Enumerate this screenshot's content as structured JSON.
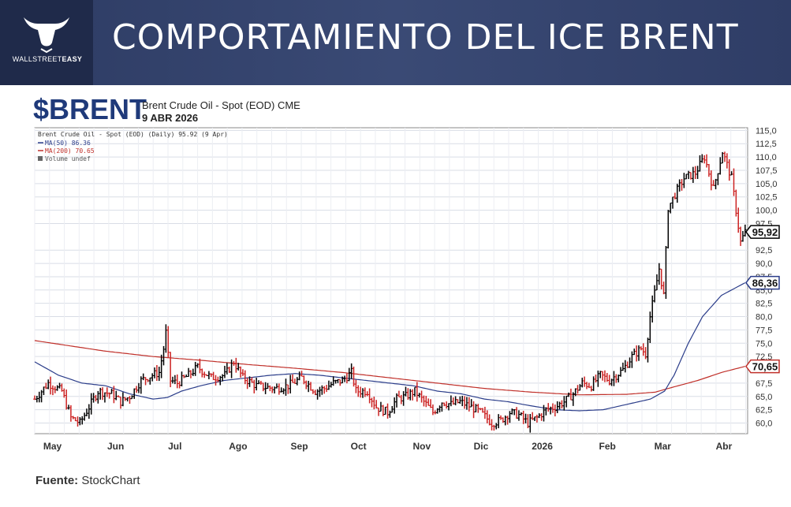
{
  "header": {
    "title": "COMPORTAMIENTO DEL ICE BRENT",
    "logo_text_light": "WALLSTREET",
    "logo_text_bold": "EASY"
  },
  "chart_header": {
    "symbol": "$BRENT",
    "description": "Brent Crude Oil - Spot (EOD) CME",
    "date": "9 ABR 2026"
  },
  "legend": {
    "price": "Brent Crude Oil - Spot (EOD) (Daily) 95.92 (9 Apr)",
    "ma50": "MA(50) 86.36",
    "ma200": "MA(200) 70.65",
    "volume": "Volume undef"
  },
  "footer": {
    "source_label": "Fuente:",
    "source_value": "StockChart"
  },
  "colors": {
    "header_bg": "#2d3b63",
    "up_bar": "#000000",
    "down_bar": "#cc2222",
    "ma50": "#2b3d8a",
    "ma200": "#c0302a",
    "grid": "#d9dde6"
  },
  "chart_data": {
    "type": "ohlc",
    "title": "Brent Crude Oil - Spot (EOD) (Daily)",
    "ylim": [
      58,
      115.5
    ],
    "y_ticks": [
      "115,0",
      "112,5",
      "110,0",
      "107,5",
      "105,0",
      "102,5",
      "100,0",
      "97,5",
      "92,5",
      "90,0",
      "87,5",
      "85,0",
      "82,5",
      "80,0",
      "77,5",
      "75,0",
      "72,5",
      "67,5",
      "65,0",
      "62,5",
      "60,0"
    ],
    "y_tick_values": [
      115,
      112.5,
      110,
      107.5,
      105,
      102.5,
      100,
      97.5,
      92.5,
      90,
      87.5,
      85,
      82.5,
      80,
      77.5,
      75,
      72.5,
      67.5,
      65,
      62.5,
      60
    ],
    "x_labels": [
      "May",
      "Jun",
      "Jul",
      "Ago",
      "Sep",
      "Oct",
      "Nov",
      "Dic",
      "2026",
      "Feb",
      "Mar",
      "Abr"
    ],
    "x_label_positions_days": [
      9,
      41,
      71,
      103,
      134,
      164,
      196,
      226,
      257,
      290,
      318,
      349
    ],
    "total_days": 361,
    "last_value_labels": [
      {
        "label": "95,92",
        "value": 95.92,
        "series": "price"
      },
      {
        "label": "86,36",
        "value": 86.36,
        "series": "ma50"
      },
      {
        "label": "70,65",
        "value": 70.65,
        "series": "ma200"
      }
    ],
    "price_path": [
      [
        0,
        64.5
      ],
      [
        6,
        67.5
      ],
      [
        12,
        66
      ],
      [
        16,
        61
      ],
      [
        20,
        60
      ],
      [
        24,
        63
      ],
      [
        28,
        66
      ],
      [
        34,
        65.5
      ],
      [
        38,
        64
      ],
      [
        42,
        65
      ],
      [
        47,
        68
      ],
      [
        52,
        69
      ],
      [
        55,
        69.5
      ],
      [
        57,
        74
      ],
      [
        58,
        77
      ],
      [
        60,
        68
      ],
      [
        63,
        67.5
      ],
      [
        68,
        69
      ],
      [
        72,
        70.5
      ],
      [
        78,
        68.5
      ],
      [
        84,
        69
      ],
      [
        88,
        71.5
      ],
      [
        92,
        68.5
      ],
      [
        98,
        67
      ],
      [
        106,
        66.5
      ],
      [
        112,
        67
      ],
      [
        118,
        68.5
      ],
      [
        124,
        66
      ],
      [
        128,
        66.5
      ],
      [
        132,
        67.5
      ],
      [
        136,
        68
      ],
      [
        140,
        69.5
      ],
      [
        142,
        66
      ],
      [
        147,
        66
      ],
      [
        151,
        63
      ],
      [
        156,
        62
      ],
      [
        160,
        64.5
      ],
      [
        164,
        65
      ],
      [
        168,
        66
      ],
      [
        172,
        64
      ],
      [
        176,
        62
      ],
      [
        180,
        64
      ],
      [
        184,
        63.5
      ],
      [
        188,
        64
      ],
      [
        193,
        63
      ],
      [
        197,
        62
      ],
      [
        202,
        60
      ],
      [
        206,
        60.5
      ],
      [
        210,
        62
      ],
      [
        214,
        61.5
      ],
      [
        218,
        60
      ],
      [
        222,
        61
      ],
      [
        226,
        62.5
      ],
      [
        230,
        63
      ],
      [
        234,
        64
      ],
      [
        238,
        65.5
      ],
      [
        242,
        67.5
      ],
      [
        246,
        67
      ],
      [
        250,
        69
      ],
      [
        254,
        68
      ],
      [
        260,
        70
      ],
      [
        264,
        72.5
      ],
      [
        268,
        74
      ],
      [
        270,
        73
      ],
      [
        272,
        80
      ],
      [
        276,
        89
      ],
      [
        278,
        84
      ],
      [
        280,
        100.5
      ],
      [
        283,
        103
      ],
      [
        287,
        106
      ],
      [
        292,
        107
      ],
      [
        296,
        110
      ],
      [
        300,
        104
      ],
      [
        304,
        111
      ],
      [
        308,
        106
      ],
      [
        312,
        94
      ],
      [
        314,
        95.92
      ]
    ],
    "ma50_path": [
      [
        0,
        71.5
      ],
      [
        10,
        69
      ],
      [
        20,
        67.5
      ],
      [
        30,
        67
      ],
      [
        40,
        65.5
      ],
      [
        50,
        64.5
      ],
      [
        56,
        64.8
      ],
      [
        62,
        66
      ],
      [
        70,
        67
      ],
      [
        80,
        68
      ],
      [
        90,
        68.5
      ],
      [
        100,
        69
      ],
      [
        110,
        69.3
      ],
      [
        120,
        69
      ],
      [
        130,
        68.5
      ],
      [
        140,
        68
      ],
      [
        150,
        67.5
      ],
      [
        160,
        67
      ],
      [
        170,
        66
      ],
      [
        180,
        65.5
      ],
      [
        190,
        64.5
      ],
      [
        200,
        64
      ],
      [
        210,
        63.2
      ],
      [
        220,
        62.5
      ],
      [
        230,
        62.3
      ],
      [
        240,
        62.5
      ],
      [
        250,
        63.5
      ],
      [
        260,
        64.5
      ],
      [
        266,
        66
      ],
      [
        270,
        69
      ],
      [
        276,
        75
      ],
      [
        282,
        80
      ],
      [
        290,
        84
      ],
      [
        300,
        86.36
      ]
    ],
    "ma200_path": [
      [
        0,
        75.5
      ],
      [
        15,
        74.5
      ],
      [
        30,
        73.5
      ],
      [
        50,
        72.5
      ],
      [
        70,
        71.8
      ],
      [
        90,
        71
      ],
      [
        110,
        70.3
      ],
      [
        130,
        69.5
      ],
      [
        150,
        68.5
      ],
      [
        170,
        67.5
      ],
      [
        190,
        66.5
      ],
      [
        210,
        65.8
      ],
      [
        230,
        65.3
      ],
      [
        250,
        65.4
      ],
      [
        262,
        65.8
      ],
      [
        270,
        66.8
      ],
      [
        280,
        68
      ],
      [
        290,
        69.5
      ],
      [
        300,
        70.65
      ]
    ]
  }
}
